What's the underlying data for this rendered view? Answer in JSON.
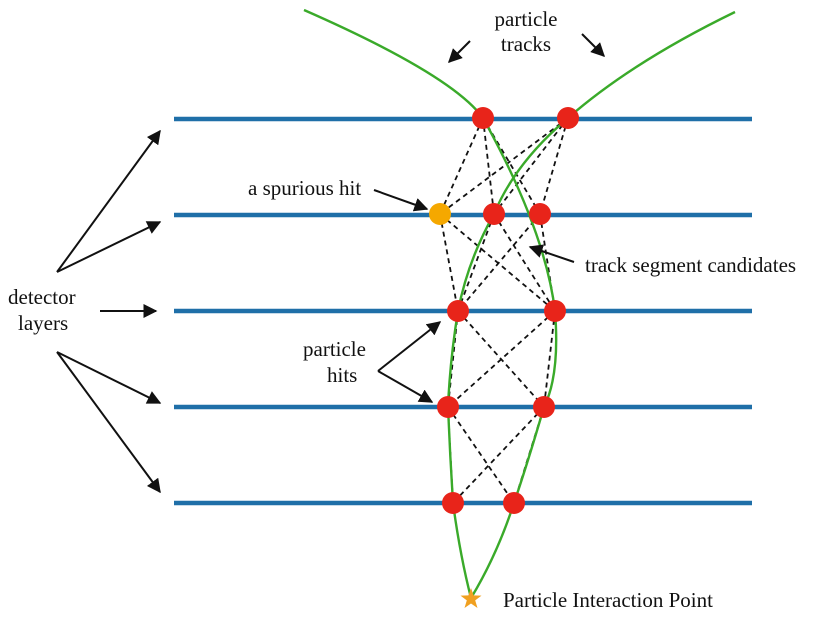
{
  "labels": {
    "particle_tracks_line1": "particle",
    "particle_tracks_line2": "tracks",
    "spurious_hit": "a spurious hit",
    "track_segment_candidates": "track segment candidates",
    "detector_layers_line1": "detector",
    "detector_layers_line2": "layers",
    "particle_hits_line1": "particle",
    "particle_hits_line2": "hits",
    "interaction_point": "Particle Interaction Point"
  },
  "colors": {
    "detector_layer": "#1f6fa8",
    "track": "#3aaa2a",
    "hit": "#e8241a",
    "spurious_hit": "#f5a800",
    "interaction_point": "#f0a020",
    "segment": "#111111",
    "arrow": "#111111",
    "text": "#111111"
  },
  "detector_layer_count": 5,
  "hits_per_layer": [
    {
      "layer": 1,
      "particle_hits": 2,
      "spurious_hits": 0
    },
    {
      "layer": 2,
      "particle_hits": 2,
      "spurious_hits": 1
    },
    {
      "layer": 3,
      "particle_hits": 2,
      "spurious_hits": 0
    },
    {
      "layer": 4,
      "particle_hits": 2,
      "spurious_hits": 0
    },
    {
      "layer": 5,
      "particle_hits": 2,
      "spurious_hits": 0
    }
  ],
  "icons": {
    "interaction_point": "star-icon"
  }
}
